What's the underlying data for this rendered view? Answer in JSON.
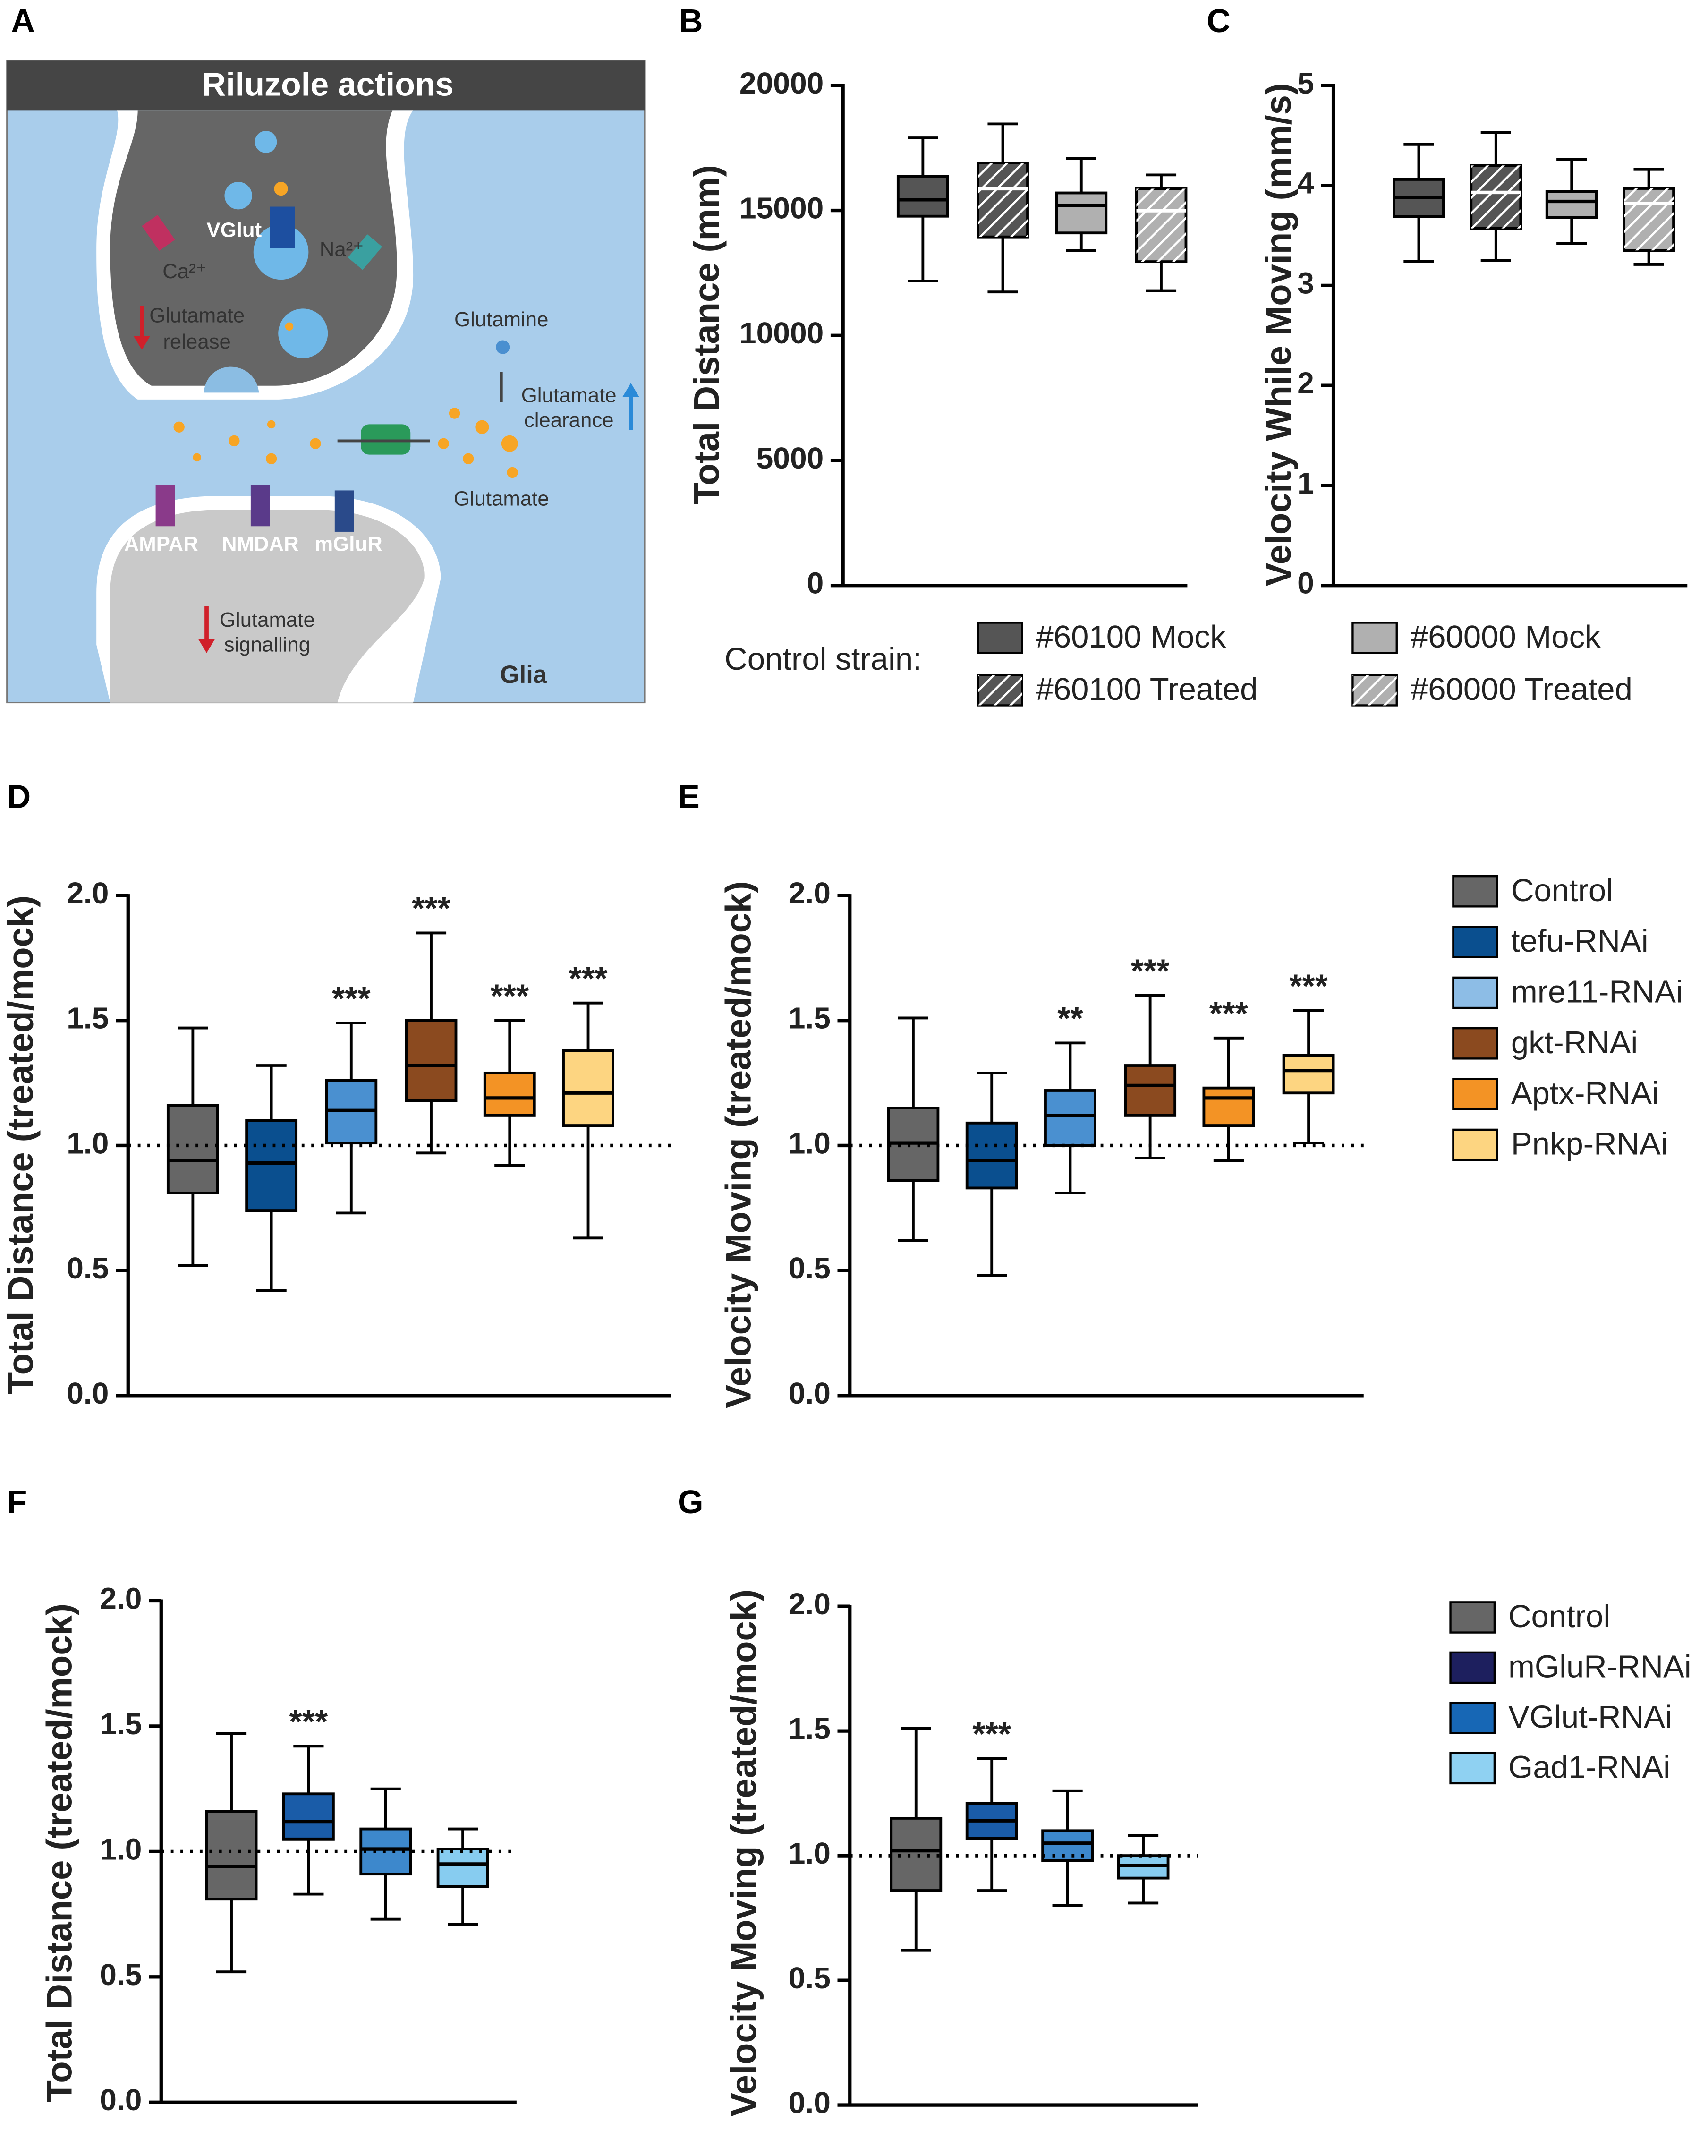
{
  "diagram": {
    "panel": "A",
    "title": "Riluzole actions",
    "labels": {
      "vglut": "VGlut",
      "ca": "Ca²⁺",
      "na": "Na²⁺",
      "release": [
        "Glutamate",
        "release"
      ],
      "glutamine": "Glutamine",
      "clearance": [
        "Glutamate",
        "clearance"
      ],
      "glutamate": "Glutamate",
      "ampar": "AMPAR",
      "nmdar": "NMDAR",
      "mglur": "mGluR",
      "signalling": [
        "Glutamate",
        "signalling"
      ],
      "glia": "Glia"
    }
  },
  "chart_data": [
    {
      "type": "box",
      "panel": "B",
      "ylabel": "Total Distance (mm)",
      "ylim": [
        0,
        20000
      ],
      "yticks": [
        0,
        5000,
        10000,
        15000,
        20000
      ],
      "boxes": [
        {
          "color": "#555555",
          "hatch": false,
          "min": 12180,
          "q1": 14770,
          "median": 15430,
          "q3": 16360,
          "max": 17900
        },
        {
          "color": "#555555",
          "hatch": true,
          "min": 11740,
          "q1": 13940,
          "median": 15870,
          "q3": 16900,
          "max": 18460
        },
        {
          "color": "#b0b0b0",
          "hatch": false,
          "min": 13390,
          "q1": 14100,
          "median": 15200,
          "q3": 15700,
          "max": 17080
        },
        {
          "color": "#b0b0b0",
          "hatch": true,
          "min": 11790,
          "q1": 12950,
          "median": 14990,
          "q3": 15870,
          "max": 16420
        }
      ],
      "legend": {
        "title": "Control strain:",
        "entries": [
          {
            "name": "#60100 Mock",
            "color": "#555555",
            "hatch": false
          },
          {
            "name": "#60100 Treated",
            "color": "#555555",
            "hatch": true
          },
          {
            "name": "#60000 Mock",
            "color": "#b0b0b0",
            "hatch": false
          },
          {
            "name": "#60000 Treated",
            "color": "#b0b0b0",
            "hatch": true
          }
        ]
      }
    },
    {
      "type": "box",
      "panel": "C",
      "ylabel": "Velocity While Moving (mm/s)",
      "ylim": [
        0,
        5
      ],
      "yticks": [
        0,
        1,
        2,
        3,
        4,
        5
      ],
      "boxes": [
        {
          "color": "#555555",
          "hatch": false,
          "min": 3.24,
          "q1": 3.69,
          "median": 3.88,
          "q3": 4.06,
          "max": 4.41
        },
        {
          "color": "#555555",
          "hatch": true,
          "min": 3.25,
          "q1": 3.57,
          "median": 3.93,
          "q3": 4.2,
          "max": 4.53
        },
        {
          "color": "#b0b0b0",
          "hatch": false,
          "min": 3.42,
          "q1": 3.68,
          "median": 3.84,
          "q3": 3.94,
          "max": 4.26
        },
        {
          "color": "#b0b0b0",
          "hatch": true,
          "min": 3.21,
          "q1": 3.35,
          "median": 3.82,
          "q3": 3.97,
          "max": 4.16
        }
      ]
    },
    {
      "type": "box",
      "panel": "D",
      "ylabel": "Total Distance (treated/mock)",
      "ylim": [
        0,
        2
      ],
      "yticks": [
        {
          "value": 0,
          "label": "0.0"
        },
        0.5,
        {
          "value": 1,
          "label": "1.0"
        },
        1.5,
        {
          "value": 2,
          "label": "2.0"
        }
      ],
      "reference_line": 1,
      "boxes": [
        {
          "color": "#666666",
          "min": 0.52,
          "q1": 0.81,
          "median": 0.94,
          "q3": 1.16,
          "max": 1.47
        },
        {
          "color": "#0a4f8f",
          "min": 0.42,
          "q1": 0.74,
          "median": 0.93,
          "q3": 1.1,
          "max": 1.32
        },
        {
          "color": "#4a90d0",
          "min": 0.73,
          "q1": 1.01,
          "median": 1.14,
          "q3": 1.26,
          "max": 1.49,
          "annotation": "***"
        },
        {
          "color": "#8b4a1f",
          "min": 0.97,
          "q1": 1.18,
          "median": 1.32,
          "q3": 1.5,
          "max": 1.85,
          "annotation": "***"
        },
        {
          "color": "#f39325",
          "min": 0.92,
          "q1": 1.12,
          "median": 1.19,
          "q3": 1.29,
          "max": 1.5,
          "annotation": "***"
        },
        {
          "color": "#fdd581",
          "min": 0.63,
          "q1": 1.08,
          "median": 1.21,
          "q3": 1.38,
          "max": 1.57,
          "annotation": "***"
        }
      ]
    },
    {
      "type": "box",
      "panel": "E",
      "ylabel": "Velocity Moving (treated/mock)",
      "ylim": [
        0,
        2
      ],
      "yticks": [
        {
          "value": 0,
          "label": "0.0"
        },
        0.5,
        {
          "value": 1,
          "label": "1.0"
        },
        1.5,
        {
          "value": 2,
          "label": "2.0"
        }
      ],
      "reference_line": 1,
      "boxes": [
        {
          "color": "#666666",
          "min": 0.62,
          "q1": 0.86,
          "median": 1.01,
          "q3": 1.15,
          "max": 1.51
        },
        {
          "color": "#0a4f8f",
          "min": 0.48,
          "q1": 0.83,
          "median": 0.94,
          "q3": 1.09,
          "max": 1.29
        },
        {
          "color": "#4a90d0",
          "min": 0.81,
          "q1": 1.0,
          "median": 1.12,
          "q3": 1.22,
          "max": 1.41,
          "annotation": "**"
        },
        {
          "color": "#8b4a1f",
          "min": 0.95,
          "q1": 1.12,
          "median": 1.24,
          "q3": 1.32,
          "max": 1.6,
          "annotation": "***"
        },
        {
          "color": "#f39325",
          "min": 0.94,
          "q1": 1.08,
          "median": 1.19,
          "q3": 1.23,
          "max": 1.43,
          "annotation": "***"
        },
        {
          "color": "#fdd581",
          "min": 1.01,
          "q1": 1.21,
          "median": 1.3,
          "q3": 1.36,
          "max": 1.54,
          "annotation": "***"
        }
      ],
      "legend": {
        "entries": [
          {
            "name": "Control",
            "color": "#666666"
          },
          {
            "name": "tefu-RNAi",
            "color": "#0a4f8f"
          },
          {
            "name": "mre11-RNAi",
            "color": "#8dbde6"
          },
          {
            "name": "gkt-RNAi",
            "color": "#8b4a1f"
          },
          {
            "name": "Aptx-RNAi",
            "color": "#f39325"
          },
          {
            "name": "Pnkp-RNAi",
            "color": "#fdd581"
          }
        ]
      }
    },
    {
      "type": "box",
      "panel": "F",
      "ylabel": "Total Distance (treated/mock)",
      "ylim": [
        0,
        2
      ],
      "yticks": [
        {
          "value": 0,
          "label": "0.0"
        },
        0.5,
        {
          "value": 1,
          "label": "1.0"
        },
        1.5,
        {
          "value": 2,
          "label": "2.0"
        }
      ],
      "reference_line": 1,
      "boxes": [
        {
          "color": "#666666",
          "min": 0.52,
          "q1": 0.81,
          "median": 0.94,
          "q3": 1.16,
          "max": 1.47
        },
        {
          "color": "#1a5ca8",
          "min": 0.83,
          "q1": 1.05,
          "median": 1.12,
          "q3": 1.23,
          "max": 1.42,
          "annotation": "***"
        },
        {
          "color": "#3d88cc",
          "min": 0.73,
          "q1": 0.91,
          "median": 1.01,
          "q3": 1.09,
          "max": 1.25
        },
        {
          "color": "#87ccf0",
          "min": 0.71,
          "q1": 0.86,
          "median": 0.95,
          "q3": 1.01,
          "max": 1.09
        }
      ]
    },
    {
      "type": "box",
      "panel": "G",
      "ylabel": "Velocity Moving (treated/mock)",
      "ylim": [
        0,
        2
      ],
      "yticks": [
        {
          "value": 0,
          "label": "0.0"
        },
        0.5,
        {
          "value": 1,
          "label": "1.0"
        },
        1.5,
        {
          "value": 2,
          "label": "2.0"
        }
      ],
      "reference_line": 1,
      "boxes": [
        {
          "color": "#666666",
          "min": 0.62,
          "q1": 0.86,
          "median": 1.02,
          "q3": 1.15,
          "max": 1.51
        },
        {
          "color": "#1a5ca8",
          "min": 0.86,
          "q1": 1.07,
          "median": 1.14,
          "q3": 1.21,
          "max": 1.39,
          "annotation": "***"
        },
        {
          "color": "#3d88cc",
          "min": 0.8,
          "q1": 0.98,
          "median": 1.05,
          "q3": 1.1,
          "max": 1.26
        },
        {
          "color": "#87ccf0",
          "min": 0.81,
          "q1": 0.91,
          "median": 0.96,
          "q3": 1.0,
          "max": 1.08
        }
      ],
      "legend": {
        "entries": [
          {
            "name": "Control",
            "color": "#666666"
          },
          {
            "name": "mGluR-RNAi",
            "color": "#1d1f5e"
          },
          {
            "name": "VGlut-RNAi",
            "color": "#1767b5"
          },
          {
            "name": "Gad1-RNAi",
            "color": "#8fd1f2"
          }
        ]
      }
    }
  ]
}
